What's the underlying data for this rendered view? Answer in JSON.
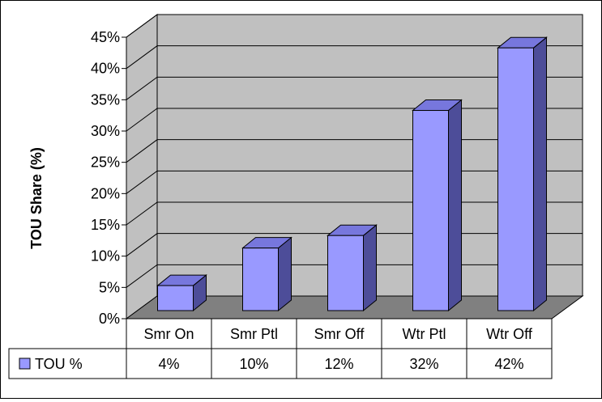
{
  "chart_data": {
    "type": "bar",
    "title": "",
    "xlabel": "",
    "ylabel": "TOU Share (%)",
    "categories": [
      "Smr On",
      "Smr Ptl",
      "Smr Off",
      "Wtr Ptl",
      "Wtr Off"
    ],
    "series": [
      {
        "name": "TOU %",
        "values": [
          0.04,
          0.1,
          0.12,
          0.32,
          0.42
        ],
        "value_labels": [
          "4%",
          "10%",
          "12%",
          "32%",
          "42%"
        ]
      }
    ],
    "ylim": [
      0,
      0.45
    ],
    "yticks": [
      0,
      0.05,
      0.1,
      0.15,
      0.2,
      0.25,
      0.3,
      0.35,
      0.4,
      0.45
    ],
    "ytick_labels": [
      "0%",
      "5%",
      "10%",
      "15%",
      "20%",
      "25%",
      "30%",
      "35%",
      "40%",
      "45%"
    ],
    "grid": true,
    "three_d": true,
    "data_table": true,
    "legend": "data-table",
    "colors": {
      "bar_front": "#9999ff",
      "bar_side": "#4d4d99",
      "bar_top": "#7777dd",
      "back_wall": "#c0c0c0",
      "floor": "#808080",
      "plot_border": "#000000"
    }
  }
}
